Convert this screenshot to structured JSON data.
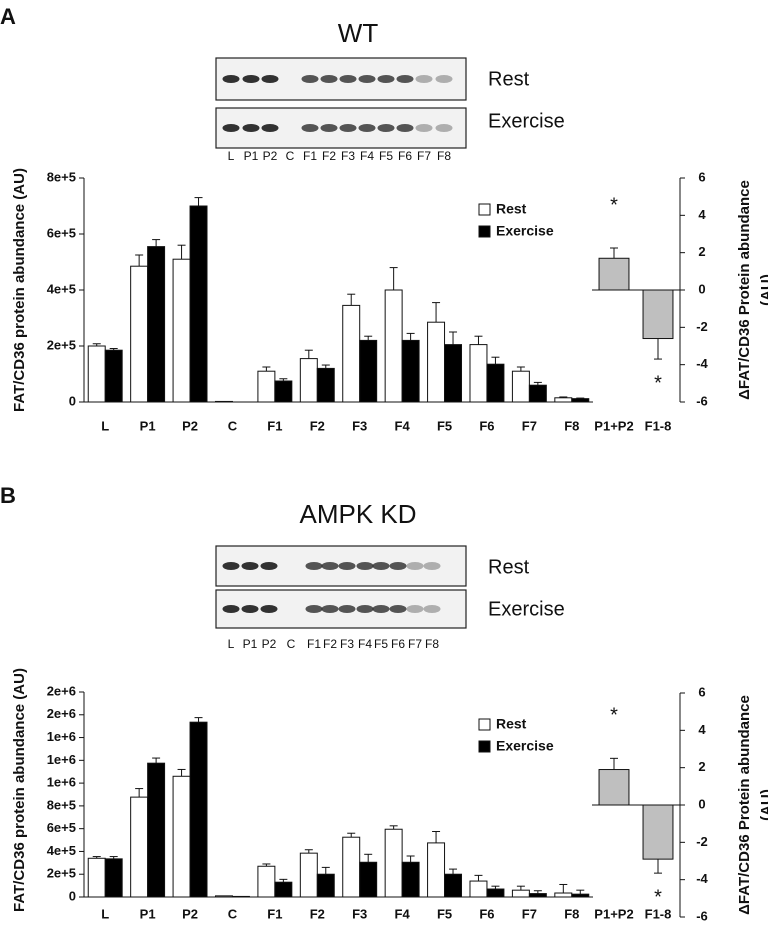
{
  "panels": [
    {
      "label": "A",
      "title": "WT",
      "blot": {
        "rows": [
          "Rest",
          "Exercise"
        ],
        "lanes": [
          "L",
          "P1",
          "P2",
          "C",
          "F1",
          "F2",
          "F3",
          "F4",
          "F5",
          "F6",
          "F7",
          "F8"
        ]
      }
    },
    {
      "label": "B",
      "title": "AMPK KD",
      "blot": {
        "rows": [
          "Rest",
          "Exercise"
        ],
        "lanes": [
          "L",
          "P1",
          "P2",
          "C",
          "F1",
          "F2",
          "F3",
          "F4",
          "F5",
          "F6",
          "F7",
          "F8"
        ]
      }
    }
  ],
  "chart_data": [
    {
      "type": "bar",
      "y_label": "FAT/CD36 protein abundance (AU)",
      "categories": [
        "L",
        "P1",
        "P2",
        "C",
        "F1",
        "F2",
        "F3",
        "F4",
        "F5",
        "F6",
        "F7",
        "F8"
      ],
      "series": [
        {
          "name": "Rest",
          "color": "#ffffff",
          "values": [
            200000,
            485000,
            510000,
            2000,
            110000,
            155000,
            345000,
            400000,
            285000,
            205000,
            110000,
            15000
          ],
          "errors": [
            8000,
            40000,
            50000,
            0,
            15000,
            30000,
            40000,
            80000,
            70000,
            30000,
            15000,
            3000
          ]
        },
        {
          "name": "Exercise",
          "color": "#000000",
          "values": [
            185000,
            555000,
            700000,
            0,
            75000,
            120000,
            220000,
            220000,
            205000,
            135000,
            60000,
            12000
          ],
          "errors": [
            6000,
            25000,
            30000,
            0,
            8000,
            12000,
            15000,
            25000,
            45000,
            25000,
            10000,
            2000
          ]
        }
      ],
      "ylim": [
        0,
        800000
      ],
      "yticks": [
        0,
        {
          "value": 200000,
          "label": "2e+5"
        },
        {
          "value": 400000,
          "label": "4e+5"
        },
        {
          "value": 600000,
          "label": "6e+5"
        },
        {
          "value": 800000,
          "label": "8e+5"
        }
      ],
      "legend": "upper right"
    },
    {
      "type": "delta",
      "y_label": [
        "ΔFAT/CD36 Protein abundance",
        "(AU)"
      ],
      "categories": [
        "P1+P2",
        "F1-8"
      ],
      "series": [
        {
          "color": "#bfbfbf",
          "values": [
            1.7,
            -2.6
          ],
          "errors": [
            0.55,
            1.1
          ]
        }
      ],
      "annotations": [
        "*",
        "*"
      ],
      "ylim": [
        -6,
        6
      ],
      "yticks": [
        -6,
        -4,
        -2,
        0,
        2,
        4,
        6
      ]
    },
    {
      "type": "bar",
      "y_label": "FAT/CD36 protein abundance (AU)",
      "categories": [
        "L",
        "P1",
        "P2",
        "C",
        "F1",
        "F2",
        "F3",
        "F4",
        "F5",
        "F6",
        "F7",
        "F8"
      ],
      "series": [
        {
          "name": "Rest",
          "color": "#ffffff",
          "values": [
            340000,
            877000,
            1060000,
            10000,
            270000,
            385000,
            525000,
            595000,
            475000,
            140000,
            60000,
            35000
          ],
          "errors": [
            15000,
            75000,
            60000,
            0,
            20000,
            30000,
            35000,
            30000,
            100000,
            50000,
            35000,
            75000
          ]
        },
        {
          "name": "Exercise",
          "color": "#000000",
          "values": [
            335000,
            1175000,
            1535000,
            5000,
            130000,
            200000,
            305000,
            305000,
            200000,
            70000,
            30000,
            25000
          ],
          "errors": [
            20000,
            45000,
            40000,
            0,
            25000,
            60000,
            70000,
            55000,
            45000,
            25000,
            25000,
            35000
          ]
        }
      ],
      "ylim": [
        0,
        1800000
      ],
      "yticks": [
        0,
        {
          "value": 200000,
          "label": "2e+5"
        },
        {
          "value": 400000,
          "label": "4e+5"
        },
        {
          "value": 600000,
          "label": "6e+5"
        },
        {
          "value": 800000,
          "label": "8e+5"
        },
        {
          "value": 1000000,
          "label": "1e+6"
        },
        {
          "value": 1200000,
          "label": "1e+6"
        },
        {
          "value": 1400000,
          "label": "1e+6"
        },
        {
          "value": 1600000,
          "label": "2e+6"
        },
        {
          "value": 1800000,
          "label": "2e+6"
        }
      ],
      "legend": "upper right"
    },
    {
      "type": "delta",
      "y_label": [
        "ΔFAT/CD36 Protein abundance",
        "(AU)"
      ],
      "categories": [
        "P1+P2",
        "F1-8"
      ],
      "series": [
        {
          "color": "#bfbfbf",
          "values": [
            1.9,
            -2.9
          ],
          "errors": [
            0.6,
            0.75
          ]
        }
      ],
      "annotations": [
        "*",
        "*"
      ],
      "ylim": [
        -6,
        6
      ],
      "yticks": [
        -6,
        -4,
        -2,
        0,
        2,
        4,
        6
      ]
    }
  ]
}
